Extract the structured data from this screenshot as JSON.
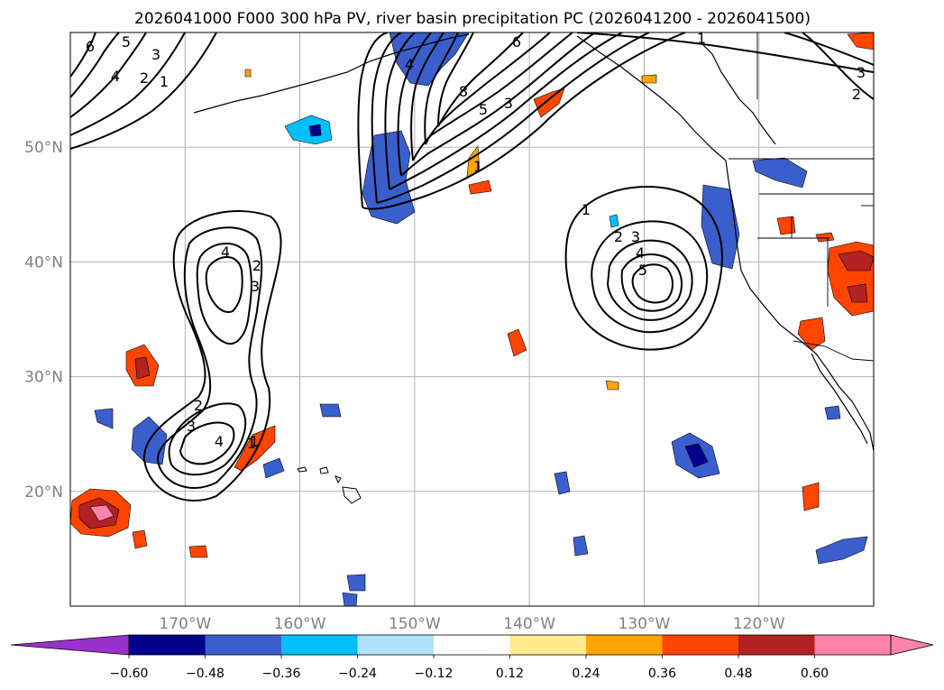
{
  "title": "2026041000 F000 300 hPa PV, river basin precipitation PC (2026041200 - 2026041500)",
  "map": {
    "lon_range": [
      -180,
      -110
    ],
    "lat_range": [
      10,
      60
    ],
    "lat_labels": [
      "50°N",
      "40°N",
      "30°N",
      "20°N"
    ],
    "lat_values": [
      50,
      40,
      30,
      20
    ],
    "lon_labels": [
      "170°W",
      "160°W",
      "150°W",
      "140°W",
      "130°W",
      "120°W"
    ],
    "lon_values": [
      -170,
      -160,
      -150,
      -140,
      -130,
      -120
    ],
    "grid": true,
    "coastline_color": "#000000"
  },
  "pv_contour_labels": [
    "6",
    "5",
    "4",
    "3",
    "2",
    "1",
    "4",
    "2",
    "3",
    "1",
    "3",
    "2",
    "4",
    "1",
    "4",
    "8",
    "6",
    "5",
    "3",
    "1",
    "1",
    "2",
    "3",
    "4",
    "5",
    "1",
    "3",
    "2"
  ],
  "colorbar": {
    "ticks": [
      "−0.60",
      "−0.48",
      "−0.36",
      "−0.24",
      "−0.12",
      "0.12",
      "0.24",
      "0.36",
      "0.48",
      "0.60"
    ],
    "colors": [
      "#9932cc",
      "#00008b",
      "#3a5fcd",
      "#00bfff",
      "#b0e2ff",
      "#ffffff",
      "#ffeb8c",
      "#ffa500",
      "#ff4500",
      "#b22222",
      "#ff82ab",
      "#ff82ab"
    ],
    "extend": "both"
  }
}
